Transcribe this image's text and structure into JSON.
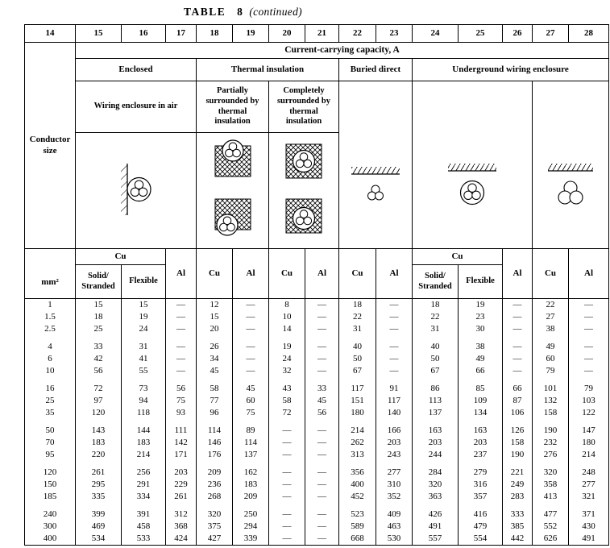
{
  "title": {
    "table": "TABLE 8",
    "continued": "(continued)"
  },
  "colors": {
    "ink": "#000000",
    "paper": "#ffffff"
  },
  "columns": {
    "numbers": [
      "14",
      "15",
      "16",
      "17",
      "18",
      "19",
      "20",
      "21",
      "22",
      "23",
      "24",
      "25",
      "26",
      "27",
      "28"
    ]
  },
  "header": {
    "capacity": "Current-carrying capacity, A",
    "conductor_size": "Conductor size",
    "mm2": "mm²",
    "categories": {
      "enclosed": "Enclosed",
      "thermal": "Thermal insulation",
      "buried": "Buried direct",
      "underground": "Underground wiring enclosure"
    },
    "subcategories": {
      "air": "Wiring enclosure in air",
      "partial": "Partially surrounded by thermal insulation",
      "complete": "Completely surrounded by thermal insulation"
    },
    "materials": {
      "cu": "Cu",
      "al": "Al",
      "solid": "Solid/ Stranded",
      "flexible": "Flexible"
    }
  },
  "icons": {
    "enclosure_in_air": "wall-with-trefoil-cable-circle",
    "partially_surrounded": "crosshatch-blocks-cable-partially-embedded",
    "completely_surrounded": "crosshatch-blocks-cable-fully-embedded",
    "buried_direct": "ground-surface-with-small-trefoil-cables",
    "underground_conduit": "ground-surface-with-trefoil-in-circle",
    "underground_bundle": "ground-surface-with-three-cables"
  },
  "body": {
    "groups": [
      [
        {
          "size": "1",
          "values": [
            "15",
            "15",
            "—",
            "12",
            "—",
            "8",
            "—",
            "18",
            "—",
            "18",
            "19",
            "—",
            "22",
            "—"
          ]
        },
        {
          "size": "1.5",
          "values": [
            "18",
            "19",
            "—",
            "15",
            "—",
            "10",
            "—",
            "22",
            "—",
            "22",
            "23",
            "—",
            "27",
            "—"
          ]
        },
        {
          "size": "2.5",
          "values": [
            "25",
            "24",
            "—",
            "20",
            "—",
            "14",
            "—",
            "31",
            "—",
            "31",
            "30",
            "—",
            "38",
            "—"
          ]
        }
      ],
      [
        {
          "size": "4",
          "values": [
            "33",
            "31",
            "—",
            "26",
            "—",
            "19",
            "—",
            "40",
            "—",
            "40",
            "38",
            "—",
            "49",
            "—"
          ]
        },
        {
          "size": "6",
          "values": [
            "42",
            "41",
            "—",
            "34",
            "—",
            "24",
            "—",
            "50",
            "—",
            "50",
            "49",
            "—",
            "60",
            "—"
          ]
        },
        {
          "size": "10",
          "values": [
            "56",
            "55",
            "—",
            "45",
            "—",
            "32",
            "—",
            "67",
            "—",
            "67",
            "66",
            "—",
            "79",
            "—"
          ]
        }
      ],
      [
        {
          "size": "16",
          "values": [
            "72",
            "73",
            "56",
            "58",
            "45",
            "43",
            "33",
            "117",
            "91",
            "86",
            "85",
            "66",
            "101",
            "79"
          ]
        },
        {
          "size": "25",
          "values": [
            "97",
            "94",
            "75",
            "77",
            "60",
            "58",
            "45",
            "151",
            "117",
            "113",
            "109",
            "87",
            "132",
            "103"
          ]
        },
        {
          "size": "35",
          "values": [
            "120",
            "118",
            "93",
            "96",
            "75",
            "72",
            "56",
            "180",
            "140",
            "137",
            "134",
            "106",
            "158",
            "122"
          ]
        }
      ],
      [
        {
          "size": "50",
          "values": [
            "143",
            "144",
            "111",
            "114",
            "89",
            "—",
            "—",
            "214",
            "166",
            "163",
            "163",
            "126",
            "190",
            "147"
          ]
        },
        {
          "size": "70",
          "values": [
            "183",
            "183",
            "142",
            "146",
            "114",
            "—",
            "—",
            "262",
            "203",
            "203",
            "203",
            "158",
            "232",
            "180"
          ]
        },
        {
          "size": "95",
          "values": [
            "220",
            "214",
            "171",
            "176",
            "137",
            "—",
            "—",
            "313",
            "243",
            "244",
            "237",
            "190",
            "276",
            "214"
          ]
        }
      ],
      [
        {
          "size": "120",
          "values": [
            "261",
            "256",
            "203",
            "209",
            "162",
            "—",
            "—",
            "356",
            "277",
            "284",
            "279",
            "221",
            "320",
            "248"
          ]
        },
        {
          "size": "150",
          "values": [
            "295",
            "291",
            "229",
            "236",
            "183",
            "—",
            "—",
            "400",
            "310",
            "320",
            "316",
            "249",
            "358",
            "277"
          ]
        },
        {
          "size": "185",
          "values": [
            "335",
            "334",
            "261",
            "268",
            "209",
            "—",
            "—",
            "452",
            "352",
            "363",
            "357",
            "283",
            "413",
            "321"
          ]
        }
      ],
      [
        {
          "size": "240",
          "values": [
            "399",
            "391",
            "312",
            "320",
            "250",
            "—",
            "—",
            "523",
            "409",
            "426",
            "416",
            "333",
            "477",
            "371"
          ]
        },
        {
          "size": "300",
          "values": [
            "469",
            "458",
            "368",
            "375",
            "294",
            "—",
            "—",
            "589",
            "463",
            "491",
            "479",
            "385",
            "552",
            "430"
          ]
        },
        {
          "size": "400",
          "values": [
            "534",
            "533",
            "424",
            "427",
            "339",
            "—",
            "—",
            "668",
            "530",
            "557",
            "554",
            "442",
            "626",
            "491"
          ]
        }
      ]
    ]
  }
}
